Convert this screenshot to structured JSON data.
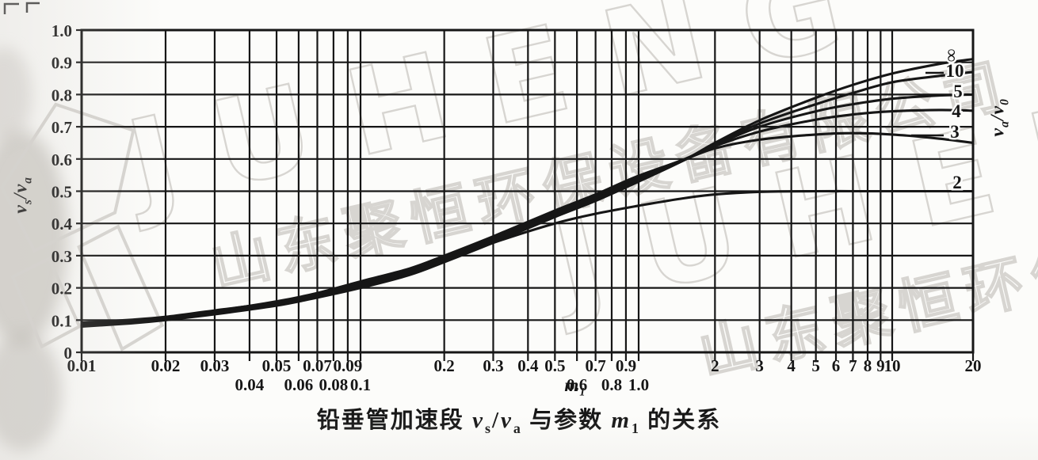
{
  "page": {
    "background": "#fcfcfa",
    "ink": "#161616",
    "watermark_color": "#d7d5d1"
  },
  "watermark": {
    "brand": "JUHENG",
    "company": "山东聚恒环保设备有限公司"
  },
  "axes": {
    "y_left": {
      "base1": "v",
      "sub1": "s",
      "slash": "/",
      "base2": "v",
      "sub2": "a"
    },
    "y_right": {
      "base1": "v",
      "sub1": "a",
      "slash": "/",
      "base2": "v",
      "sub2": "0"
    },
    "x": {
      "base": "m",
      "sub": "1"
    }
  },
  "caption": {
    "seg1": "铅垂管加速段 ",
    "v1": "v",
    "v1sub": "s",
    "slash": "/",
    "v2": "v",
    "v2sub": "a",
    "seg2": " 与参数 ",
    "m": "m",
    "msub": "1",
    "seg3": " 的关系"
  },
  "chart_data": {
    "type": "line",
    "x_scale": "log",
    "x_range": [
      0.01,
      20
    ],
    "y_range": [
      0,
      1.0
    ],
    "grid": true,
    "xlabel": "m1",
    "ylabel_left": "vs/va",
    "ylabel_right": "va/v0",
    "series_parameter": "va/v0",
    "x_ticks": [
      {
        "v": 0.01,
        "label": "0.01",
        "row": 1
      },
      {
        "v": 0.02,
        "label": "0.02",
        "row": 1
      },
      {
        "v": 0.03,
        "label": "0.03",
        "row": 1
      },
      {
        "v": 0.04,
        "label": "0.04",
        "row": 2
      },
      {
        "v": 0.05,
        "label": "0.05",
        "row": 1
      },
      {
        "v": 0.06,
        "label": "0.06",
        "row": 2
      },
      {
        "v": 0.07,
        "label": "0.07",
        "row": 1
      },
      {
        "v": 0.08,
        "label": "0.08",
        "row": 2
      },
      {
        "v": 0.09,
        "label": "0.09",
        "row": 1
      },
      {
        "v": 0.1,
        "label": "0.1",
        "row": 2
      },
      {
        "v": 0.2,
        "label": "0.2",
        "row": 1
      },
      {
        "v": 0.3,
        "label": "0.3",
        "row": 1
      },
      {
        "v": 0.4,
        "label": "0.4",
        "row": 1
      },
      {
        "v": 0.5,
        "label": "0.5",
        "row": 1
      },
      {
        "v": 0.6,
        "label": "0.6",
        "row": 2
      },
      {
        "v": 0.7,
        "label": "0.7",
        "row": 1
      },
      {
        "v": 0.8,
        "label": "0.8",
        "row": 2
      },
      {
        "v": 0.9,
        "label": "0.9",
        "row": 1
      },
      {
        "v": 1.0,
        "label": "1.0",
        "row": 2
      },
      {
        "v": 2,
        "label": "2",
        "row": 1
      },
      {
        "v": 3,
        "label": "3",
        "row": 1
      },
      {
        "v": 4,
        "label": "4",
        "row": 1
      },
      {
        "v": 5,
        "label": "5",
        "row": 1
      },
      {
        "v": 6,
        "label": "6",
        "row": 1
      },
      {
        "v": 7,
        "label": "7",
        "row": 1
      },
      {
        "v": 8,
        "label": "8",
        "row": 1
      },
      {
        "v": 9,
        "label": "9",
        "row": 1
      },
      {
        "v": 10,
        "label": "10",
        "row": 1
      },
      {
        "v": 20,
        "label": "20",
        "row": 1
      }
    ],
    "y_ticks": [
      {
        "v": 0,
        "label": "0"
      },
      {
        "v": 0.1,
        "label": "0.1"
      },
      {
        "v": 0.2,
        "label": "0.2"
      },
      {
        "v": 0.3,
        "label": "0.3"
      },
      {
        "v": 0.4,
        "label": "0.4"
      },
      {
        "v": 0.5,
        "label": "0.5"
      },
      {
        "v": 0.6,
        "label": "0.6"
      },
      {
        "v": 0.7,
        "label": "0.7"
      },
      {
        "v": 0.8,
        "label": "0.8"
      },
      {
        "v": 0.9,
        "label": "0.9"
      },
      {
        "v": 1.0,
        "label": "1.0"
      }
    ],
    "series": [
      {
        "name": "va/v0 = ∞",
        "label": "∞",
        "x": [
          0.01,
          0.015,
          0.02,
          0.03,
          0.05,
          0.07,
          0.1,
          0.15,
          0.2,
          0.3,
          0.5,
          0.7,
          1,
          1.5,
          2,
          3,
          5,
          7,
          10,
          15,
          20
        ],
        "y": [
          0.08,
          0.09,
          0.1,
          0.118,
          0.145,
          0.17,
          0.2,
          0.24,
          0.28,
          0.34,
          0.42,
          0.47,
          0.53,
          0.595,
          0.65,
          0.72,
          0.79,
          0.83,
          0.865,
          0.895,
          0.91
        ]
      },
      {
        "name": "va/v0 = 10",
        "label": "10",
        "x": [
          0.01,
          0.015,
          0.02,
          0.03,
          0.05,
          0.07,
          0.1,
          0.15,
          0.2,
          0.3,
          0.5,
          0.7,
          1,
          1.5,
          2,
          3,
          5,
          7,
          10,
          15,
          20
        ],
        "y": [
          0.082,
          0.092,
          0.101,
          0.12,
          0.148,
          0.172,
          0.205,
          0.245,
          0.285,
          0.345,
          0.425,
          0.475,
          0.535,
          0.595,
          0.645,
          0.71,
          0.77,
          0.805,
          0.838,
          0.858,
          0.87
        ]
      },
      {
        "name": "va/v0 = 5",
        "label": "5",
        "x": [
          0.01,
          0.015,
          0.02,
          0.03,
          0.05,
          0.07,
          0.1,
          0.15,
          0.2,
          0.3,
          0.5,
          0.7,
          1,
          1.5,
          2,
          3,
          5,
          7,
          10,
          15,
          20
        ],
        "y": [
          0.085,
          0.094,
          0.103,
          0.122,
          0.152,
          0.176,
          0.21,
          0.25,
          0.29,
          0.35,
          0.43,
          0.48,
          0.54,
          0.597,
          0.643,
          0.7,
          0.748,
          0.77,
          0.787,
          0.797,
          0.8
        ]
      },
      {
        "name": "va/v0 = 4",
        "label": "4",
        "x": [
          0.01,
          0.015,
          0.02,
          0.03,
          0.05,
          0.07,
          0.1,
          0.15,
          0.2,
          0.3,
          0.5,
          0.7,
          1,
          1.5,
          2,
          3,
          5,
          7,
          10,
          15,
          20
        ],
        "y": [
          0.088,
          0.097,
          0.106,
          0.125,
          0.155,
          0.18,
          0.215,
          0.255,
          0.295,
          0.355,
          0.435,
          0.485,
          0.545,
          0.598,
          0.64,
          0.685,
          0.722,
          0.738,
          0.748,
          0.752,
          0.75
        ]
      },
      {
        "name": "va/v0 = 3",
        "label": "3",
        "x": [
          0.01,
          0.015,
          0.02,
          0.03,
          0.05,
          0.07,
          0.1,
          0.15,
          0.2,
          0.3,
          0.5,
          0.7,
          1,
          1.5,
          2,
          3,
          5,
          7,
          10,
          15,
          20
        ],
        "y": [
          0.09,
          0.099,
          0.108,
          0.128,
          0.158,
          0.184,
          0.22,
          0.26,
          0.3,
          0.36,
          0.44,
          0.49,
          0.548,
          0.597,
          0.633,
          0.66,
          0.676,
          0.68,
          0.676,
          0.663,
          0.65
        ]
      },
      {
        "name": "va/v0 = 2",
        "label": "2",
        "x": [
          0.01,
          0.015,
          0.02,
          0.03,
          0.05,
          0.07,
          0.1,
          0.15,
          0.2,
          0.3,
          0.5,
          0.7,
          1,
          1.5,
          2,
          3,
          5,
          7,
          10,
          15,
          20
        ],
        "y": [
          0.092,
          0.101,
          0.11,
          0.13,
          0.155,
          0.18,
          0.21,
          0.248,
          0.285,
          0.34,
          0.4,
          0.43,
          0.455,
          0.478,
          0.49,
          0.498,
          0.5,
          0.5,
          0.5,
          0.5,
          0.5
        ]
      }
    ]
  }
}
